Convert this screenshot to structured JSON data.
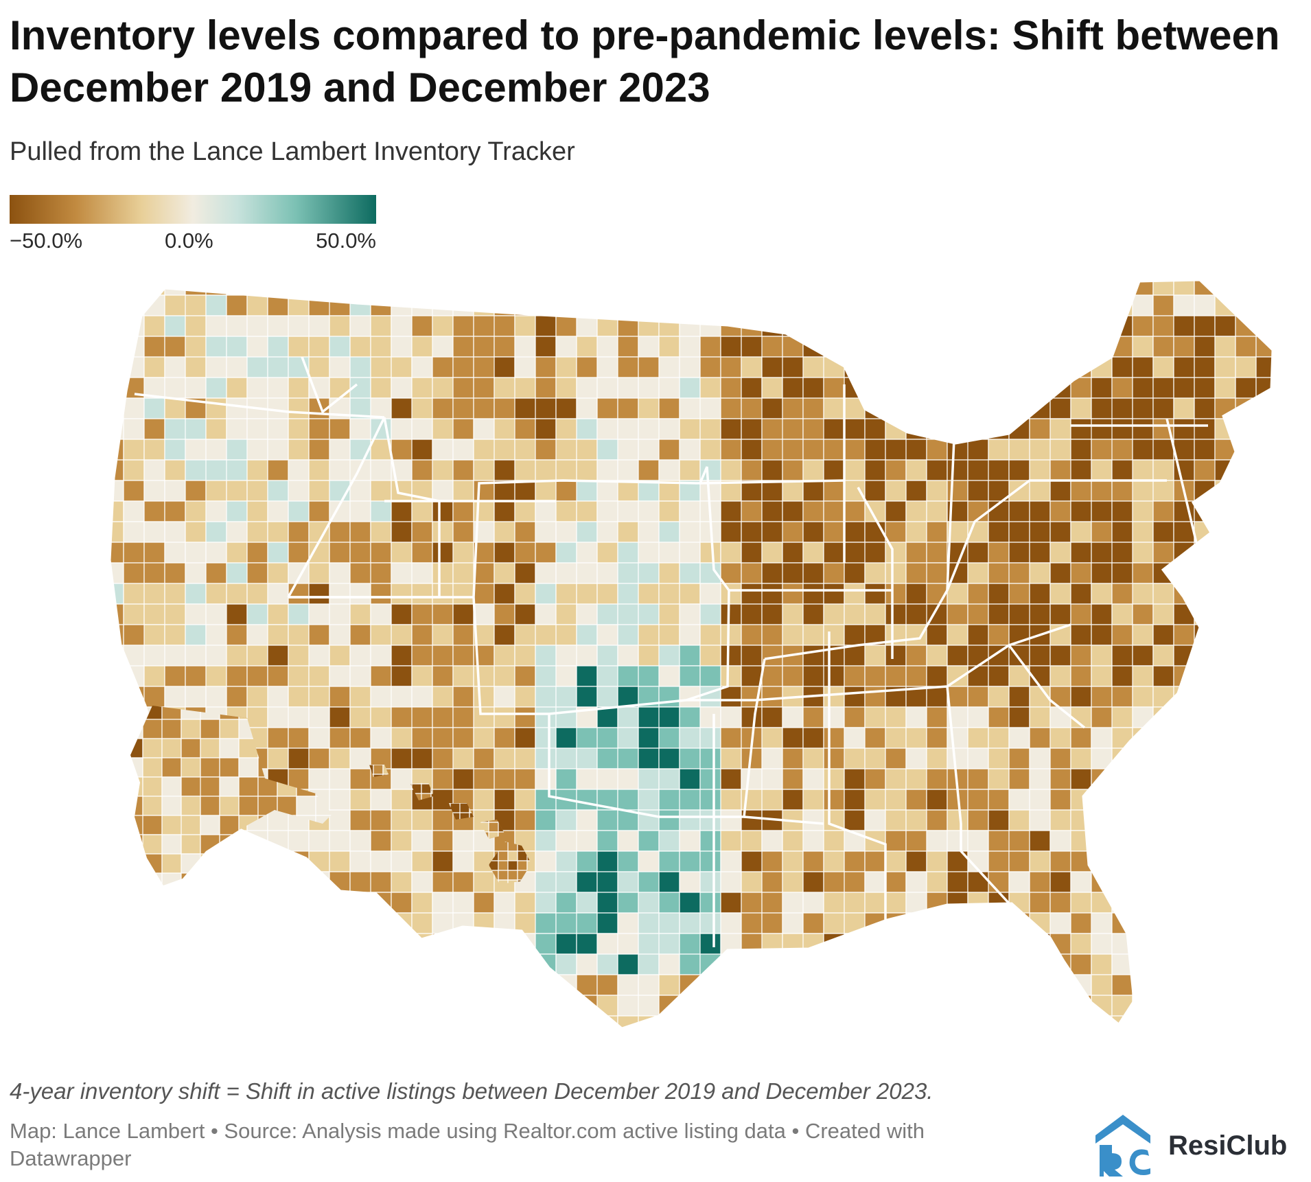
{
  "header": {
    "title": "Inventory levels compared to pre-pandemic levels: Shift between December 2019 and December 2023",
    "subtitle": "Pulled from the Lance Lambert Inventory Tracker"
  },
  "legend": {
    "min_label": "−50.0%",
    "mid_label": "0.0%",
    "max_label": "50.0%",
    "range": [
      -50,
      50
    ],
    "colors": [
      "#8c5210",
      "#c18a40",
      "#e8cf98",
      "#f1ece0",
      "#c8e2dc",
      "#7cc1b4",
      "#0d6b60"
    ]
  },
  "map": {
    "region": "United States counties including Alaska and Hawaii",
    "theme_colors": {
      "strong_decline": "#8c5210",
      "decline": "#c18a40",
      "slight_decline": "#e8cf98",
      "neutral": "#f1ece0",
      "slight_increase": "#c8e2dc",
      "increase": "#7cc1b4",
      "strong_increase": "#0d6b60",
      "borders": "#ffffff"
    }
  },
  "footer": {
    "note": "4-year inventory shift = Shift in active listings between December 2019 and December 2023.",
    "source": "Map: Lance Lambert • Source: Analysis made using Realtor.com active listing data • Created with Datawrapper",
    "logo_text": "ResiClub"
  }
}
